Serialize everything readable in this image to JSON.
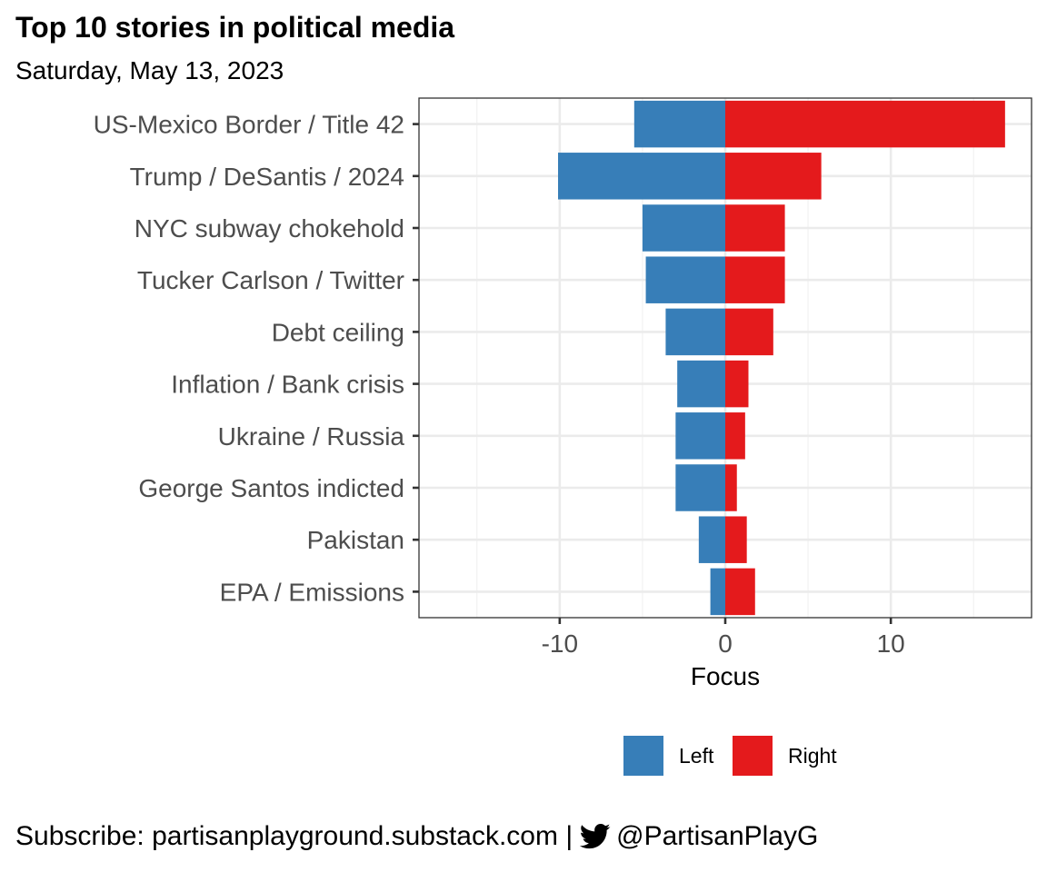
{
  "chart_data": {
    "type": "bar",
    "orientation": "horizontal",
    "stacked": "diverging",
    "title": "Top 10 stories in political media",
    "subtitle": "Saturday, May 13, 2023",
    "xlabel": "Focus",
    "ylabel": "",
    "xlim": [
      -18.5,
      18.5
    ],
    "x_ticks": [
      -10,
      0,
      10
    ],
    "x_tick_labels": [
      "-10",
      "0",
      "10"
    ],
    "grid": true,
    "legend_position": "bottom",
    "categories": [
      "US-Mexico Border / Title 42",
      "Trump / DeSantis / 2024",
      "NYC subway chokehold",
      "Tucker Carlson / Twitter",
      "Debt ceiling",
      "Inflation / Bank crisis",
      "Ukraine / Russia",
      "George Santos indicted",
      "Pakistan",
      "EPA / Emissions"
    ],
    "series": [
      {
        "name": "Left",
        "color": "#377eb8",
        "values": [
          -5.5,
          -10.1,
          -5.0,
          -4.8,
          -3.6,
          -2.9,
          -3.0,
          -3.0,
          -1.6,
          -0.9
        ]
      },
      {
        "name": "Right",
        "color": "#e41a1c",
        "values": [
          16.9,
          5.8,
          3.6,
          3.6,
          2.9,
          1.4,
          1.2,
          0.7,
          1.3,
          1.8
        ]
      }
    ]
  },
  "caption": {
    "prefix": "Subscribe: partisanplayground.substack.com | ",
    "icon": "twitter-bird-icon",
    "handle": "@PartisanPlayG"
  }
}
